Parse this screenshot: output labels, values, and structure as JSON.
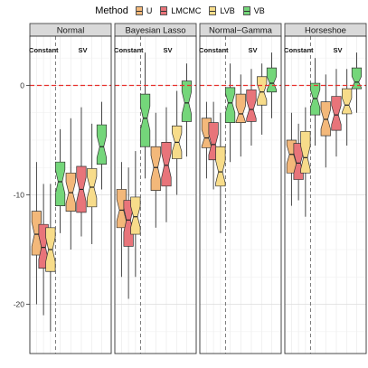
{
  "chart_data": {
    "type": "boxplot",
    "legend": {
      "title": "Method",
      "position": "top",
      "entries": [
        {
          "name": "U",
          "color": "#f3b87a"
        },
        {
          "name": "LMCMC",
          "color": "#e8747a"
        },
        {
          "name": "LVB",
          "color": "#f7dc8a"
        },
        {
          "name": "VB",
          "color": "#74d67a"
        }
      ]
    },
    "y_ticks": [
      0,
      -10,
      -20
    ],
    "ylim": [
      -24.5,
      4.5
    ],
    "reference_line": {
      "y": 0,
      "style": "dashed",
      "color": "#e8302c"
    },
    "group_labels": [
      "Constant",
      "SV"
    ],
    "panels": [
      {
        "name": "Normal",
        "boxes": [
          {
            "group": "Constant",
            "method": "U",
            "q1": -15.5,
            "median": -13.6,
            "q3": -11.5,
            "lower": -20,
            "upper": -7.0
          },
          {
            "group": "Constant",
            "method": "LMCMC",
            "q1": -16.7,
            "median": -14.8,
            "q3": -12.7,
            "lower": -21,
            "upper": -9.0
          },
          {
            "group": "Constant",
            "method": "LVB",
            "q1": -17.0,
            "median": -15.0,
            "q3": -13.0,
            "lower": -22.5,
            "upper": -9.0
          },
          {
            "group": "SV",
            "method": "VB",
            "q1": -11.0,
            "median": -8.8,
            "q3": -7.0,
            "lower": -13.5,
            "upper": -4.0
          },
          {
            "group": "SV",
            "method": "U",
            "q1": -11.5,
            "median": -9.8,
            "q3": -8.0,
            "lower": -15,
            "upper": -3.0
          },
          {
            "group": "SV",
            "method": "LMCMC",
            "q1": -11.6,
            "median": -9.5,
            "q3": -7.4,
            "lower": -13.8,
            "upper": -2.0
          },
          {
            "group": "SV",
            "method": "LVB",
            "q1": -11.1,
            "median": -9.3,
            "q3": -7.6,
            "lower": -14.5,
            "upper": -3.5
          },
          {
            "group": "SV",
            "method": "VB",
            "q1": -7.2,
            "median": -5.6,
            "q3": -3.6,
            "lower": -9.5,
            "upper": -1.5
          }
        ]
      },
      {
        "name": "Bayesian Lasso",
        "boxes": [
          {
            "group": "Constant",
            "method": "U",
            "q1": -13.0,
            "median": -11.4,
            "q3": -9.5,
            "lower": -17.5,
            "upper": -7.0
          },
          {
            "group": "Constant",
            "method": "LMCMC",
            "q1": -14.7,
            "median": -12.3,
            "q3": -10.5,
            "lower": -19.5,
            "upper": -7.5
          },
          {
            "group": "Constant",
            "method": "LVB",
            "q1": -13.6,
            "median": -12.0,
            "q3": -10.2,
            "lower": -17.5,
            "upper": -6.0
          },
          {
            "group": "SV",
            "method": "VB",
            "q1": -5.6,
            "median": -3.0,
            "q3": -0.8,
            "lower": -8.5,
            "upper": 3.0
          },
          {
            "group": "SV",
            "method": "U",
            "q1": -9.6,
            "median": -7.5,
            "q3": -5.6,
            "lower": -13,
            "upper": -2.5
          },
          {
            "group": "SV",
            "method": "LMCMC",
            "q1": -9.2,
            "median": -7.3,
            "q3": -5.2,
            "lower": -12.5,
            "upper": -2.0
          },
          {
            "group": "SV",
            "method": "LVB",
            "q1": -6.7,
            "median": -5.2,
            "q3": -3.7,
            "lower": -10,
            "upper": -0.5
          },
          {
            "group": "SV",
            "method": "VB",
            "q1": -3.3,
            "median": -1.6,
            "q3": 0.4,
            "lower": -6.5,
            "upper": 2.0
          }
        ]
      },
      {
        "name": "Normal−Gamma",
        "boxes": [
          {
            "group": "Constant",
            "method": "U",
            "q1": -5.7,
            "median": -4.8,
            "q3": -3.0,
            "lower": -8.5,
            "upper": -1.5
          },
          {
            "group": "Constant",
            "method": "LMCMC",
            "q1": -6.8,
            "median": -5.4,
            "q3": -3.4,
            "lower": -9.5,
            "upper": -1.5
          },
          {
            "group": "Constant",
            "method": "LVB",
            "q1": -9.2,
            "median": -7.9,
            "q3": -5.6,
            "lower": -13.5,
            "upper": -2.5
          },
          {
            "group": "SV",
            "method": "VB",
            "q1": -3.4,
            "median": -1.6,
            "q3": -0.2,
            "lower": -7.0,
            "upper": 2.0
          },
          {
            "group": "SV",
            "method": "U",
            "q1": -3.4,
            "median": -2.6,
            "q3": -0.8,
            "lower": -6.5,
            "upper": 1.0
          },
          {
            "group": "SV",
            "method": "LMCMC",
            "q1": -3.3,
            "median": -2.2,
            "q3": -0.4,
            "lower": -5.5,
            "upper": 1.5
          },
          {
            "group": "SV",
            "method": "LVB",
            "q1": -1.8,
            "median": -0.6,
            "q3": 0.8,
            "lower": -4.5,
            "upper": 2.0
          },
          {
            "group": "SV",
            "method": "VB",
            "q1": -0.6,
            "median": 0.2,
            "q3": 1.6,
            "lower": -3.0,
            "upper": 3.0
          }
        ]
      },
      {
        "name": "Horseshoe",
        "boxes": [
          {
            "group": "Constant",
            "method": "U",
            "q1": -8.0,
            "median": -6.3,
            "q3": -5.0,
            "lower": -11,
            "upper": -2.5
          },
          {
            "group": "Constant",
            "method": "LMCMC",
            "q1": -8.6,
            "median": -7.1,
            "q3": -5.3,
            "lower": -10.5,
            "upper": -3.5
          },
          {
            "group": "Constant",
            "method": "LVB",
            "q1": -8.0,
            "median": -6.6,
            "q3": -4.2,
            "lower": -12,
            "upper": -2.0
          },
          {
            "group": "SV",
            "method": "VB",
            "q1": -2.7,
            "median": -1.2,
            "q3": 0.2,
            "lower": -5.5,
            "upper": 2.5
          },
          {
            "group": "SV",
            "method": "U",
            "q1": -4.6,
            "median": -3.1,
            "q3": -1.5,
            "lower": -7.5,
            "upper": 1.0
          },
          {
            "group": "SV",
            "method": "LMCMC",
            "q1": -4.1,
            "median": -2.7,
            "q3": -1.0,
            "lower": -6.5,
            "upper": 1.5
          },
          {
            "group": "SV",
            "method": "LVB",
            "q1": -2.6,
            "median": -1.8,
            "q3": -0.3,
            "lower": -5.5,
            "upper": 1.5
          },
          {
            "group": "SV",
            "method": "VB",
            "q1": -0.3,
            "median": 0.3,
            "q3": 1.6,
            "lower": -2.5,
            "upper": 3.0
          }
        ]
      }
    ]
  }
}
